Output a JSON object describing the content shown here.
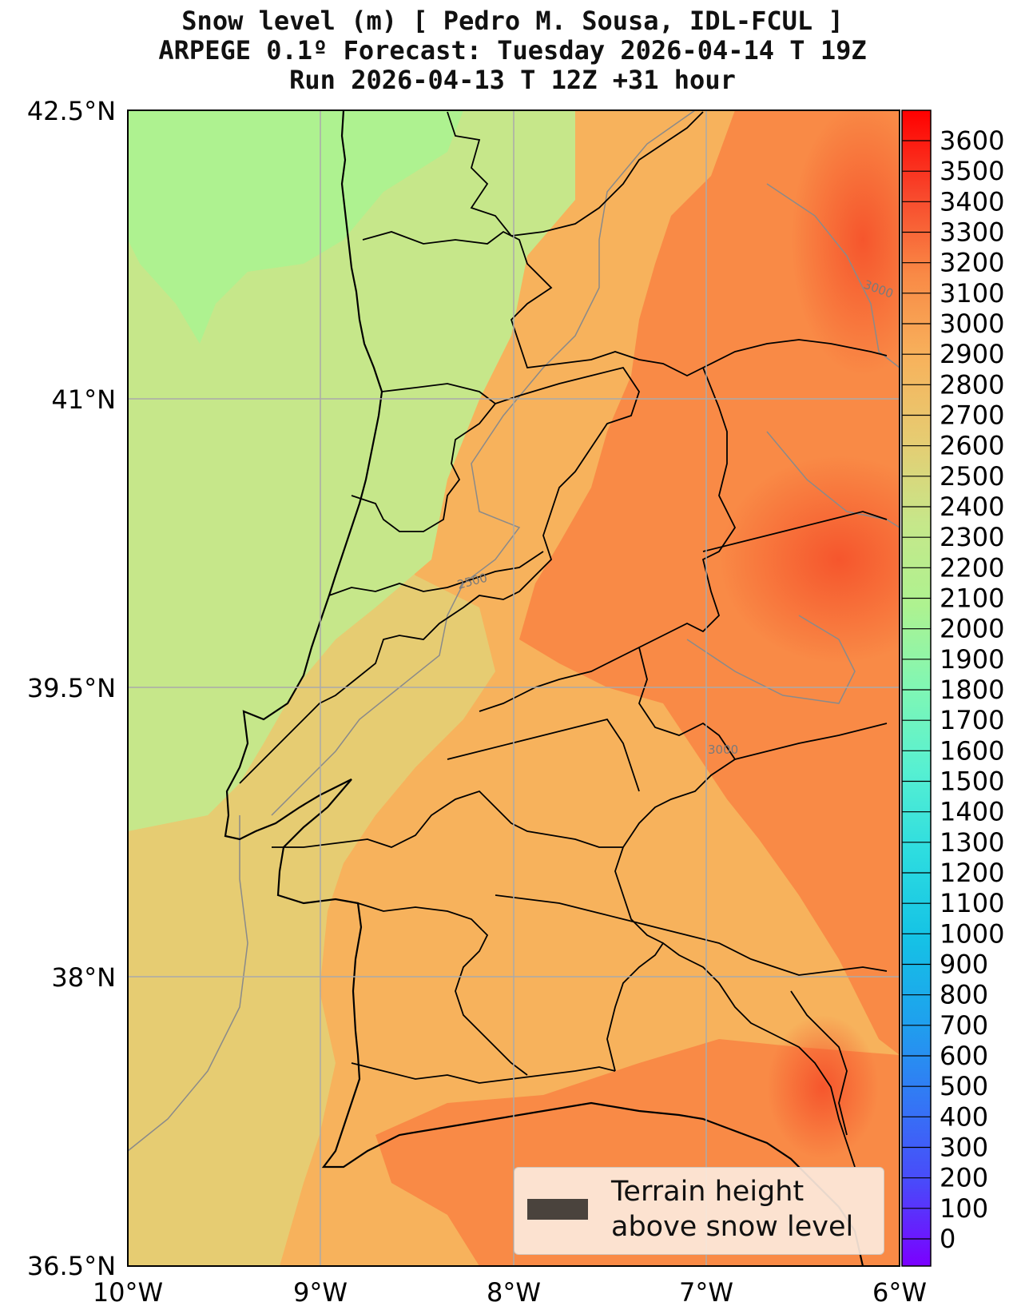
{
  "title": {
    "line1": "Snow level (m) [ Pedro M. Sousa, IDL-FCUL ]",
    "line2": "ARPEGE 0.1º Forecast: Tuesday 2026-04-14 T 19Z",
    "line3": "Run 2026-04-13 T 12Z +31 hour"
  },
  "map": {
    "lon_range": [
      -10,
      -6
    ],
    "lat_range": [
      36.5,
      42.5
    ],
    "gridlines": true,
    "lat_ticks": [
      "42.5°N",
      "41°N",
      "39.5°N",
      "38°N",
      "36.5°N"
    ],
    "lon_ticks": [
      "10°W",
      "9°W",
      "8°W",
      "7°W",
      "6°W"
    ],
    "contour_labels": [
      "3000",
      "2500",
      "3000"
    ],
    "colors": {
      "ocean_north": "#aef290",
      "ocean_mid": "#c6e78a",
      "ocean_south": "#e6cc72",
      "land_mid": "#f7b25c",
      "land_east": "#f98a46",
      "hot_east": "#f75a30",
      "boundary": "#000000",
      "grid": "#aaaaaa"
    }
  },
  "colorbar": {
    "labels": [
      "3600",
      "3500",
      "3400",
      "3300",
      "3200",
      "3100",
      "3000",
      "2900",
      "2800",
      "2700",
      "2600",
      "2500",
      "2400",
      "2300",
      "2200",
      "2100",
      "2000",
      "1900",
      "1800",
      "1700",
      "1600",
      "1500",
      "1400",
      "1300",
      "1200",
      "1100",
      "1000",
      "900",
      "800",
      "700",
      "600",
      "500",
      "400",
      "300",
      "200",
      "100",
      "0"
    ],
    "stops": [
      "#ff0000",
      "#f8462b",
      "#f98a46",
      "#f7b25c",
      "#e6cc72",
      "#c6e78a",
      "#aef290",
      "#80f7b4",
      "#56f0d2",
      "#2ddce0",
      "#15c3e5",
      "#1ea2ed",
      "#3377f5",
      "#4a49fa",
      "#7b00ff"
    ]
  },
  "legend": {
    "line1": "Terrain height",
    "line2": "above snow level",
    "swatch_color": "#4a433d"
  }
}
